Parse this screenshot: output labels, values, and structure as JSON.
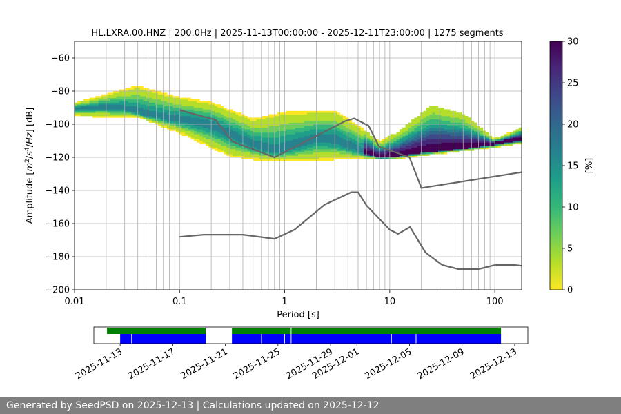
{
  "chart_data": [
    {
      "type": "heatmap",
      "title": "HL.LXRA.00.HNZ | 200.0Hz | 2025-11-13T00:00:00 - 2025-12-11T23:00:00 | 1275 segments",
      "xlabel": "Period [s]",
      "ylabel_parts": [
        "Amplitude [",
        "m",
        "2",
        "/",
        "s",
        "4",
        "/",
        "Hz",
        "] [dB]"
      ],
      "x_scale": "log",
      "xlim": [
        0.01,
        180
      ],
      "ylim": [
        -200,
        -50
      ],
      "x_ticks": [
        {
          "value": 0.01,
          "label": "0.01"
        },
        {
          "value": 0.1,
          "label": "0.1"
        },
        {
          "value": 1,
          "label": "1"
        },
        {
          "value": 10,
          "label": "10"
        },
        {
          "value": 100,
          "label": "100"
        }
      ],
      "y_ticks": [
        {
          "value": -60,
          "label": "−60"
        },
        {
          "value": -80,
          "label": "−80"
        },
        {
          "value": -100,
          "label": "−100"
        },
        {
          "value": -120,
          "label": "−120"
        },
        {
          "value": -140,
          "label": "−140"
        },
        {
          "value": -160,
          "label": "−160"
        },
        {
          "value": -180,
          "label": "−180"
        },
        {
          "value": -200,
          "label": "−200"
        }
      ],
      "grid": true,
      "colorbar": {
        "label": "[%]",
        "range": [
          0,
          30
        ],
        "ticks": [
          {
            "value": 0,
            "label": "0"
          },
          {
            "value": 5,
            "label": "5"
          },
          {
            "value": 10,
            "label": "10"
          },
          {
            "value": 15,
            "label": "15"
          },
          {
            "value": 20,
            "label": "20"
          },
          {
            "value": 25,
            "label": "25"
          },
          {
            "value": 30,
            "label": "30"
          }
        ],
        "colormap": [
          "#fde725",
          "#b5de2b",
          "#6ece58",
          "#35b779",
          "#1f9e89",
          "#26828e",
          "#31688e",
          "#3e4989",
          "#482878",
          "#440154"
        ]
      },
      "psd_mode": [
        [
          0.01,
          -91
        ],
        [
          0.02,
          -90
        ],
        [
          0.03,
          -91
        ],
        [
          0.05,
          -95
        ],
        [
          0.08,
          -97
        ],
        [
          0.12,
          -98
        ],
        [
          0.2,
          -101
        ],
        [
          0.3,
          -106
        ],
        [
          0.5,
          -113
        ],
        [
          0.8,
          -117
        ],
        [
          1.2,
          -114
        ],
        [
          2,
          -109
        ],
        [
          3,
          -110
        ],
        [
          5,
          -116
        ],
        [
          8,
          -120
        ],
        [
          12,
          -119
        ],
        [
          20,
          -117
        ],
        [
          40,
          -115
        ],
        [
          100,
          -112
        ],
        [
          180,
          -109
        ]
      ],
      "psd_spread_upper": [
        [
          0.01,
          -88
        ],
        [
          0.04,
          -78
        ],
        [
          0.1,
          -85
        ],
        [
          0.2,
          -88
        ],
        [
          0.5,
          -98
        ],
        [
          1,
          -94
        ],
        [
          3,
          -93
        ],
        [
          5,
          -102
        ],
        [
          8,
          -112
        ],
        [
          12,
          -106
        ],
        [
          25,
          -90
        ],
        [
          50,
          -95
        ],
        [
          100,
          -110
        ],
        [
          180,
          -103
        ]
      ],
      "psd_spread_lower": [
        [
          0.01,
          -95
        ],
        [
          0.04,
          -96
        ],
        [
          0.1,
          -105
        ],
        [
          0.3,
          -119
        ],
        [
          0.5,
          -121
        ],
        [
          1,
          -122
        ],
        [
          3,
          -121
        ],
        [
          5,
          -121
        ],
        [
          10,
          -121
        ],
        [
          20,
          -119
        ],
        [
          50,
          -116
        ],
        [
          100,
          -114
        ],
        [
          180,
          -112
        ]
      ],
      "noise_model_high": [
        [
          0.1,
          -91.5
        ],
        [
          0.22,
          -97.4
        ],
        [
          0.32,
          -110.5
        ],
        [
          0.8,
          -120
        ],
        [
          3.8,
          -98
        ],
        [
          4.6,
          -96.5
        ],
        [
          6.3,
          -101
        ],
        [
          7.9,
          -113.5
        ],
        [
          15.4,
          -120
        ],
        [
          20,
          -138.5
        ],
        [
          180,
          -129
        ]
      ],
      "noise_model_low": [
        [
          0.1,
          -168
        ],
        [
          0.17,
          -166.7
        ],
        [
          0.4,
          -166.7
        ],
        [
          0.8,
          -169.2
        ],
        [
          1.24,
          -163.7
        ],
        [
          2.4,
          -148.6
        ],
        [
          4.3,
          -141.1
        ],
        [
          5,
          -141.1
        ],
        [
          6,
          -149
        ],
        [
          10,
          -163.7
        ],
        [
          12,
          -166.2
        ],
        [
          15.6,
          -162.1
        ],
        [
          21.9,
          -177.5
        ],
        [
          31.6,
          -185
        ],
        [
          45,
          -187.5
        ],
        [
          70,
          -187.5
        ],
        [
          101,
          -185
        ],
        [
          154,
          -185
        ],
        [
          180,
          -185.5
        ]
      ]
    },
    {
      "type": "timeline",
      "x_ticks": [
        "2025-11-13",
        "2025-11-17",
        "2025-11-21",
        "2025-11-25",
        "2025-11-29",
        "2025-12-01",
        "2025-12-05",
        "2025-12-09",
        "2025-12-13"
      ],
      "xlim": [
        "2025-11-11",
        "2025-12-14"
      ],
      "data_coverage": {
        "color": "#008000",
        "spans": [
          [
            "2025-11-12",
            "2025-11-19T12:00"
          ],
          [
            "2025-11-21T12:00",
            "2025-12-11T23:00"
          ]
        ]
      },
      "psd_coverage": {
        "color": "#0000ff",
        "spans": [
          [
            "2025-11-13",
            "2025-11-19T12:00"
          ],
          [
            "2025-11-21T12:00",
            "2025-12-11T23:00"
          ]
        ],
        "gaps": [
          "2025-11-13T21:00",
          "2025-11-23T18:00",
          "2025-11-25T12:00",
          "2025-11-26T00:00",
          "2025-12-03T15:00",
          "2025-12-05T12:00"
        ]
      },
      "data_coverage_breaks": [
        "2025-11-26T00:00"
      ]
    }
  ],
  "footer": {
    "text": "Generated by SeedPSD on 2025-12-13 | Calculations updated on 2025-12-12"
  }
}
